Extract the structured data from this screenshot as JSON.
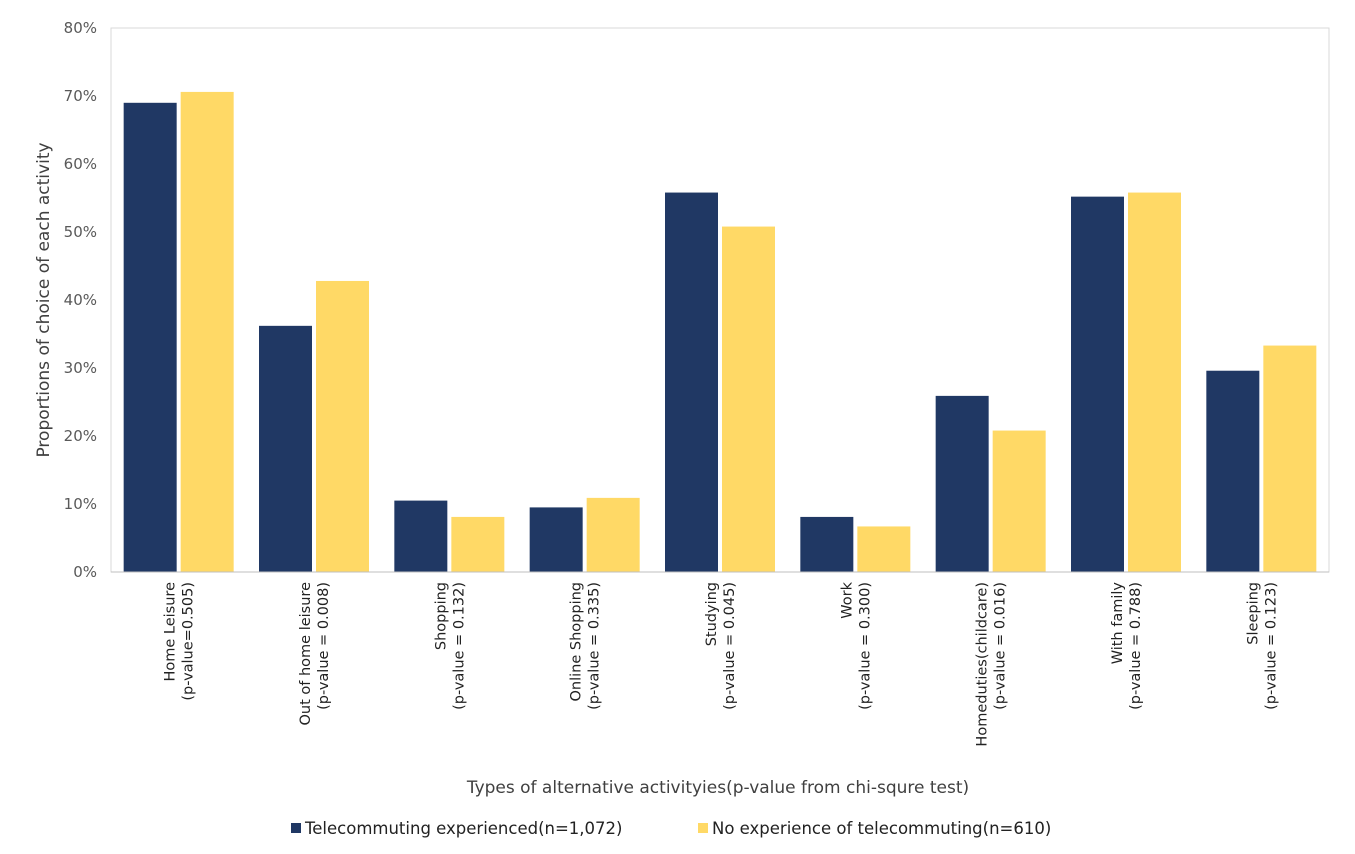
{
  "chart_data": {
    "type": "bar",
    "ylabel": "Proportions of choice of each activity",
    "xlabel": "Types of alternative activityies(p-value from chi-squre test)",
    "ylim": [
      0,
      80
    ],
    "yticks": [
      "0%",
      "10%",
      "20%",
      "30%",
      "40%",
      "50%",
      "60%",
      "70%",
      "80%"
    ],
    "grid": false,
    "legend_position": "bottom",
    "categories": [
      [
        "Home Leisure",
        "(p-value=0.505)"
      ],
      [
        "Out of home leisure",
        "(p-value = 0.008)"
      ],
      [
        "Shopping",
        "(p-value = 0.132)"
      ],
      [
        "Online Shopping",
        "(p-value = 0.335)"
      ],
      [
        "Studying",
        "(p-value = 0.045)"
      ],
      [
        "Work",
        "(p-value = 0.300)"
      ],
      [
        "Homeduties(childcare)",
        "(p-value = 0.016)"
      ],
      [
        "With family",
        "(p-value = 0.788)"
      ],
      [
        "Sleeping",
        "(p-value = 0.123)"
      ]
    ],
    "series": [
      {
        "name": "Telecommuting experienced(n=1,072)",
        "color": "#203864",
        "values": [
          69.0,
          36.2,
          10.5,
          9.5,
          55.8,
          8.1,
          25.9,
          55.2,
          29.6
        ]
      },
      {
        "name": "No experience of telecommuting(n=610)",
        "color": "#FFD966",
        "values": [
          70.6,
          42.8,
          8.1,
          10.9,
          50.8,
          6.7,
          20.8,
          55.8,
          33.3
        ]
      }
    ]
  }
}
